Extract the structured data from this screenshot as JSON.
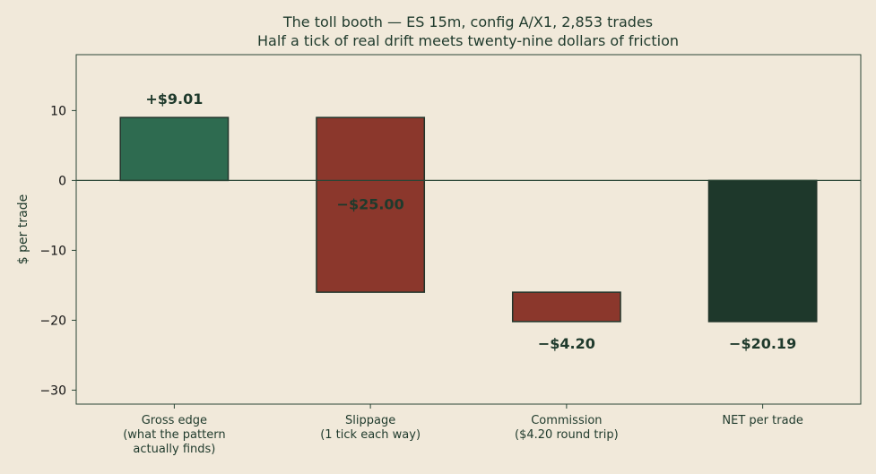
{
  "chart_data": {
    "type": "bar",
    "subtype": "waterfall",
    "title": "The toll booth — ES 15m, config A/X1, 2,853 trades",
    "subtitle": "Half a tick of real drift meets twenty-nine dollars of friction",
    "ylabel": "$ per trade",
    "xlabel": "",
    "ylim": [
      -32,
      18
    ],
    "yticks": [
      10,
      0,
      -10,
      -20,
      -30
    ],
    "ytick_labels": [
      "10",
      "0",
      "−10",
      "−20",
      "−30"
    ],
    "grid": false,
    "legend": "none",
    "bars": [
      {
        "category_lines": [
          "Gross edge",
          "(what the pattern",
          "actually finds)"
        ],
        "start": 0,
        "end": 9.01,
        "label": "+$9.01",
        "color": "#2e6b50"
      },
      {
        "category_lines": [
          "Slippage",
          "(1 tick each way)"
        ],
        "start": 9.01,
        "end": -15.99,
        "label": "−$25.00",
        "color": "#8b372c"
      },
      {
        "category_lines": [
          "Commission",
          "($4.20 round trip)"
        ],
        "start": -15.99,
        "end": -20.19,
        "label": "−$4.20",
        "color": "#8b372c"
      },
      {
        "category_lines": [
          "NET per trade"
        ],
        "start": 0,
        "end": -20.19,
        "label": "−$20.19",
        "color": "#1e382b"
      }
    ]
  }
}
